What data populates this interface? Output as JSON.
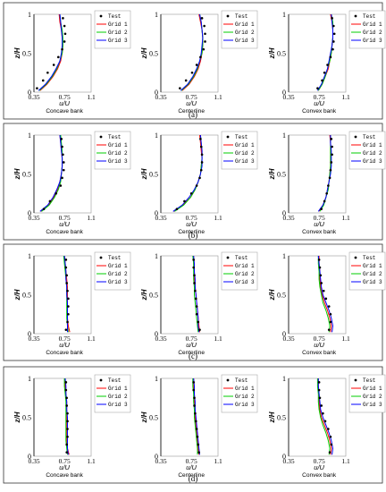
{
  "figure": {
    "panels": [
      {
        "label": "(a)"
      },
      {
        "label": "(b)"
      },
      {
        "label": "(c)"
      },
      {
        "label": "(d)"
      }
    ]
  },
  "chart_data": {
    "type": "line",
    "x_ticks": [
      "0.35",
      "0.75",
      "1.1"
    ],
    "xlim": [
      0.35,
      1.1
    ],
    "ylim": [
      0,
      1
    ],
    "y_ticks": [
      "0",
      "0.5",
      "1"
    ],
    "xlabel": "u/U",
    "ylabel": "z/H",
    "colors": {
      "Test": "#000000",
      "Grid 1": "#ff0000",
      "Grid 2": "#00cc00",
      "Grid 3": "#0000ff"
    },
    "legend": [
      "Test",
      "Grid 1",
      "Grid 2",
      "Grid 3"
    ],
    "z": [
      0.02,
      0.1,
      0.2,
      0.3,
      0.4,
      0.5,
      0.6,
      0.7,
      0.8,
      0.9,
      1.0
    ],
    "panels": [
      {
        "label": "(a)",
        "subplots": [
          {
            "subtitle": "Concave bank",
            "legend_position": "right",
            "grid1": [
              0.43,
              0.52,
              0.6,
              0.66,
              0.7,
              0.72,
              0.73,
              0.72,
              0.71,
              0.69,
              0.68
            ],
            "grid2": [
              0.42,
              0.51,
              0.59,
              0.65,
              0.69,
              0.72,
              0.73,
              0.73,
              0.72,
              0.7,
              0.69
            ],
            "grid3": [
              0.41,
              0.5,
              0.58,
              0.64,
              0.69,
              0.71,
              0.72,
              0.72,
              0.71,
              0.7,
              0.69
            ],
            "test_z": [
              0.05,
              0.15,
              0.25,
              0.35,
              0.45,
              0.55,
              0.65,
              0.75,
              0.85,
              0.95
            ],
            "test": [
              0.39,
              0.47,
              0.53,
              0.61,
              0.67,
              0.72,
              0.75,
              0.76,
              0.75,
              0.73
            ]
          },
          {
            "subtitle": "Centerline",
            "legend_position": "right",
            "grid1": [
              0.63,
              0.72,
              0.79,
              0.84,
              0.87,
              0.89,
              0.9,
              0.9,
              0.89,
              0.87,
              0.85
            ],
            "grid2": [
              0.62,
              0.71,
              0.78,
              0.83,
              0.86,
              0.89,
              0.9,
              0.9,
              0.89,
              0.88,
              0.86
            ],
            "grid3": [
              0.61,
              0.7,
              0.77,
              0.82,
              0.86,
              0.88,
              0.89,
              0.9,
              0.89,
              0.88,
              0.86
            ],
            "test_z": [
              0.05,
              0.15,
              0.25,
              0.35,
              0.45,
              0.55,
              0.65,
              0.75,
              0.85,
              0.95
            ],
            "test": [
              0.6,
              0.68,
              0.76,
              0.82,
              0.87,
              0.91,
              0.93,
              0.93,
              0.92,
              0.89
            ]
          },
          {
            "subtitle": "Convex bank",
            "legend_position": "right",
            "grid1": [
              0.74,
              0.79,
              0.83,
              0.87,
              0.89,
              0.91,
              0.92,
              0.93,
              0.93,
              0.92,
              0.9
            ],
            "grid2": [
              0.74,
              0.79,
              0.83,
              0.86,
              0.89,
              0.91,
              0.92,
              0.93,
              0.93,
              0.93,
              0.91
            ],
            "grid3": [
              0.73,
              0.78,
              0.82,
              0.86,
              0.88,
              0.9,
              0.92,
              0.93,
              0.93,
              0.92,
              0.91
            ],
            "test_z": [
              0.05,
              0.15,
              0.25,
              0.35,
              0.45,
              0.55,
              0.65,
              0.75,
              0.85,
              0.95
            ],
            "test": [
              0.73,
              0.79,
              0.82,
              0.86,
              0.9,
              0.93,
              0.94,
              0.95,
              0.94,
              0.92
            ]
          }
        ]
      },
      {
        "label": "(b)",
        "subplots": [
          {
            "subtitle": "Concave bank",
            "legend_position": "right",
            "grid1": [
              0.44,
              0.54,
              0.61,
              0.66,
              0.69,
              0.71,
              0.72,
              0.72,
              0.71,
              0.7,
              0.69
            ],
            "grid2": [
              0.45,
              0.55,
              0.62,
              0.67,
              0.7,
              0.71,
              0.72,
              0.72,
              0.72,
              0.71,
              0.7
            ],
            "grid3": [
              0.43,
              0.53,
              0.6,
              0.65,
              0.69,
              0.71,
              0.72,
              0.72,
              0.71,
              0.7,
              0.69
            ],
            "test_z": [
              0.05,
              0.15,
              0.25,
              0.35,
              0.45,
              0.55,
              0.65,
              0.75,
              0.85,
              0.95
            ],
            "test": [
              0.48,
              0.56,
              0.64,
              0.7,
              0.72,
              0.74,
              0.74,
              0.73,
              0.72,
              0.71
            ]
          },
          {
            "subtitle": "Centerline",
            "legend_position": "right",
            "grid1": [
              0.52,
              0.64,
              0.74,
              0.8,
              0.84,
              0.87,
              0.88,
              0.89,
              0.88,
              0.87,
              0.86
            ],
            "grid2": [
              0.53,
              0.65,
              0.74,
              0.8,
              0.84,
              0.87,
              0.88,
              0.89,
              0.89,
              0.88,
              0.87
            ],
            "grid3": [
              0.51,
              0.63,
              0.72,
              0.79,
              0.84,
              0.87,
              0.89,
              0.89,
              0.89,
              0.88,
              0.87
            ],
            "test_z": [
              0.05,
              0.15,
              0.25,
              0.35,
              0.45,
              0.55,
              0.65,
              0.75,
              0.85,
              0.95
            ],
            "test": [
              0.56,
              0.66,
              0.75,
              0.82,
              0.86,
              0.88,
              0.89,
              0.89,
              0.88,
              0.87
            ]
          },
          {
            "subtitle": "Convex bank",
            "legend_position": "right",
            "grid1": [
              0.75,
              0.8,
              0.84,
              0.86,
              0.88,
              0.89,
              0.9,
              0.9,
              0.9,
              0.9,
              0.89
            ],
            "grid2": [
              0.76,
              0.81,
              0.84,
              0.87,
              0.88,
              0.89,
              0.9,
              0.9,
              0.9,
              0.9,
              0.9
            ],
            "grid3": [
              0.74,
              0.8,
              0.84,
              0.86,
              0.88,
              0.9,
              0.91,
              0.91,
              0.91,
              0.9,
              0.9
            ],
            "test_z": [
              0.05,
              0.15,
              0.25,
              0.35,
              0.45,
              0.55,
              0.65,
              0.75,
              0.85,
              0.95
            ],
            "test": [
              0.78,
              0.82,
              0.85,
              0.87,
              0.89,
              0.9,
              0.91,
              0.92,
              0.92,
              0.91
            ]
          }
        ]
      },
      {
        "label": "(c)",
        "subplots": [
          {
            "subtitle": "Concave bank",
            "legend_position": "right",
            "grid1": [
              0.82,
              0.8,
              0.79,
              0.79,
              0.79,
              0.79,
              0.79,
              0.78,
              0.77,
              0.76,
              0.75
            ],
            "grid2": [
              0.8,
              0.79,
              0.78,
              0.78,
              0.78,
              0.78,
              0.78,
              0.77,
              0.76,
              0.75,
              0.74
            ],
            "grid3": [
              0.79,
              0.79,
              0.79,
              0.79,
              0.79,
              0.78,
              0.78,
              0.77,
              0.77,
              0.76,
              0.75
            ],
            "test_z": [
              0.05,
              0.15,
              0.25,
              0.35,
              0.45,
              0.55,
              0.65,
              0.75,
              0.85,
              0.95
            ],
            "test": [
              0.77,
              0.79,
              0.8,
              0.8,
              0.8,
              0.79,
              0.78,
              0.78,
              0.77,
              0.77
            ]
          },
          {
            "subtitle": "Centerline",
            "legend_position": "right",
            "grid1": [
              0.86,
              0.85,
              0.84,
              0.83,
              0.82,
              0.81,
              0.8,
              0.79,
              0.79,
              0.78,
              0.78
            ],
            "grid2": [
              0.84,
              0.83,
              0.82,
              0.81,
              0.8,
              0.79,
              0.79,
              0.78,
              0.78,
              0.78,
              0.77
            ],
            "grid3": [
              0.85,
              0.84,
              0.84,
              0.83,
              0.82,
              0.81,
              0.8,
              0.8,
              0.79,
              0.79,
              0.78
            ],
            "test_z": [
              0.05,
              0.15,
              0.25,
              0.35,
              0.45,
              0.55,
              0.65,
              0.75,
              0.85,
              0.95
            ],
            "test": [
              0.86,
              0.84,
              0.82,
              0.82,
              0.81,
              0.8,
              0.79,
              0.79,
              0.78,
              0.78
            ]
          },
          {
            "subtitle": "Convex bank",
            "legend_position": "right",
            "grid1": [
              0.9,
              0.91,
              0.89,
              0.86,
              0.82,
              0.79,
              0.77,
              0.76,
              0.76,
              0.75,
              0.75
            ],
            "grid2": [
              0.88,
              0.89,
              0.87,
              0.84,
              0.8,
              0.78,
              0.76,
              0.75,
              0.75,
              0.74,
              0.74
            ],
            "grid3": [
              0.92,
              0.93,
              0.91,
              0.88,
              0.84,
              0.8,
              0.78,
              0.77,
              0.76,
              0.75,
              0.74
            ],
            "test_z": [
              0.05,
              0.15,
              0.25,
              0.35,
              0.45,
              0.55,
              0.65,
              0.75,
              0.85,
              0.95
            ],
            "test": [
              0.88,
              0.9,
              0.9,
              0.88,
              0.84,
              0.81,
              0.78,
              0.77,
              0.76,
              0.75
            ]
          }
        ]
      },
      {
        "label": "(d)",
        "subplots": [
          {
            "subtitle": "Concave bank",
            "legend_position": "right",
            "grid1": [
              0.81,
              0.79,
              0.78,
              0.78,
              0.78,
              0.78,
              0.78,
              0.78,
              0.77,
              0.76,
              0.76
            ],
            "grid2": [
              0.79,
              0.78,
              0.77,
              0.77,
              0.77,
              0.77,
              0.77,
              0.77,
              0.76,
              0.75,
              0.75
            ],
            "grid3": [
              0.8,
              0.79,
              0.79,
              0.79,
              0.79,
              0.79,
              0.78,
              0.78,
              0.77,
              0.77,
              0.76
            ],
            "test_z": [
              0.05,
              0.15,
              0.25,
              0.35,
              0.45,
              0.55,
              0.65,
              0.75,
              0.85,
              0.95
            ],
            "test": [
              0.78,
              0.78,
              0.79,
              0.79,
              0.79,
              0.79,
              0.78,
              0.78,
              0.77,
              0.77
            ]
          },
          {
            "subtitle": "Centerline",
            "legend_position": "right",
            "grid1": [
              0.85,
              0.84,
              0.83,
              0.82,
              0.81,
              0.8,
              0.8,
              0.79,
              0.79,
              0.78,
              0.78
            ],
            "grid2": [
              0.83,
              0.83,
              0.82,
              0.81,
              0.8,
              0.79,
              0.79,
              0.78,
              0.78,
              0.77,
              0.77
            ],
            "grid3": [
              0.86,
              0.85,
              0.84,
              0.83,
              0.82,
              0.81,
              0.8,
              0.8,
              0.79,
              0.79,
              0.78
            ],
            "test_z": [
              0.05,
              0.15,
              0.25,
              0.35,
              0.45,
              0.55,
              0.65,
              0.75,
              0.85,
              0.95
            ],
            "test": [
              0.85,
              0.84,
              0.83,
              0.82,
              0.81,
              0.8,
              0.79,
              0.79,
              0.78,
              0.78
            ]
          },
          {
            "subtitle": "Convex bank",
            "legend_position": "right",
            "grid1": [
              0.9,
              0.91,
              0.89,
              0.86,
              0.82,
              0.78,
              0.76,
              0.75,
              0.75,
              0.74,
              0.74
            ],
            "grid2": [
              0.88,
              0.89,
              0.87,
              0.84,
              0.8,
              0.77,
              0.75,
              0.74,
              0.74,
              0.73,
              0.73
            ],
            "grid3": [
              0.92,
              0.93,
              0.91,
              0.88,
              0.84,
              0.8,
              0.77,
              0.76,
              0.75,
              0.74,
              0.74
            ],
            "test_z": [
              0.05,
              0.15,
              0.25,
              0.35,
              0.45,
              0.55,
              0.65,
              0.75,
              0.85,
              0.95
            ],
            "test": [
              0.89,
              0.91,
              0.9,
              0.87,
              0.83,
              0.8,
              0.78,
              0.76,
              0.75,
              0.75
            ]
          }
        ]
      }
    ]
  }
}
